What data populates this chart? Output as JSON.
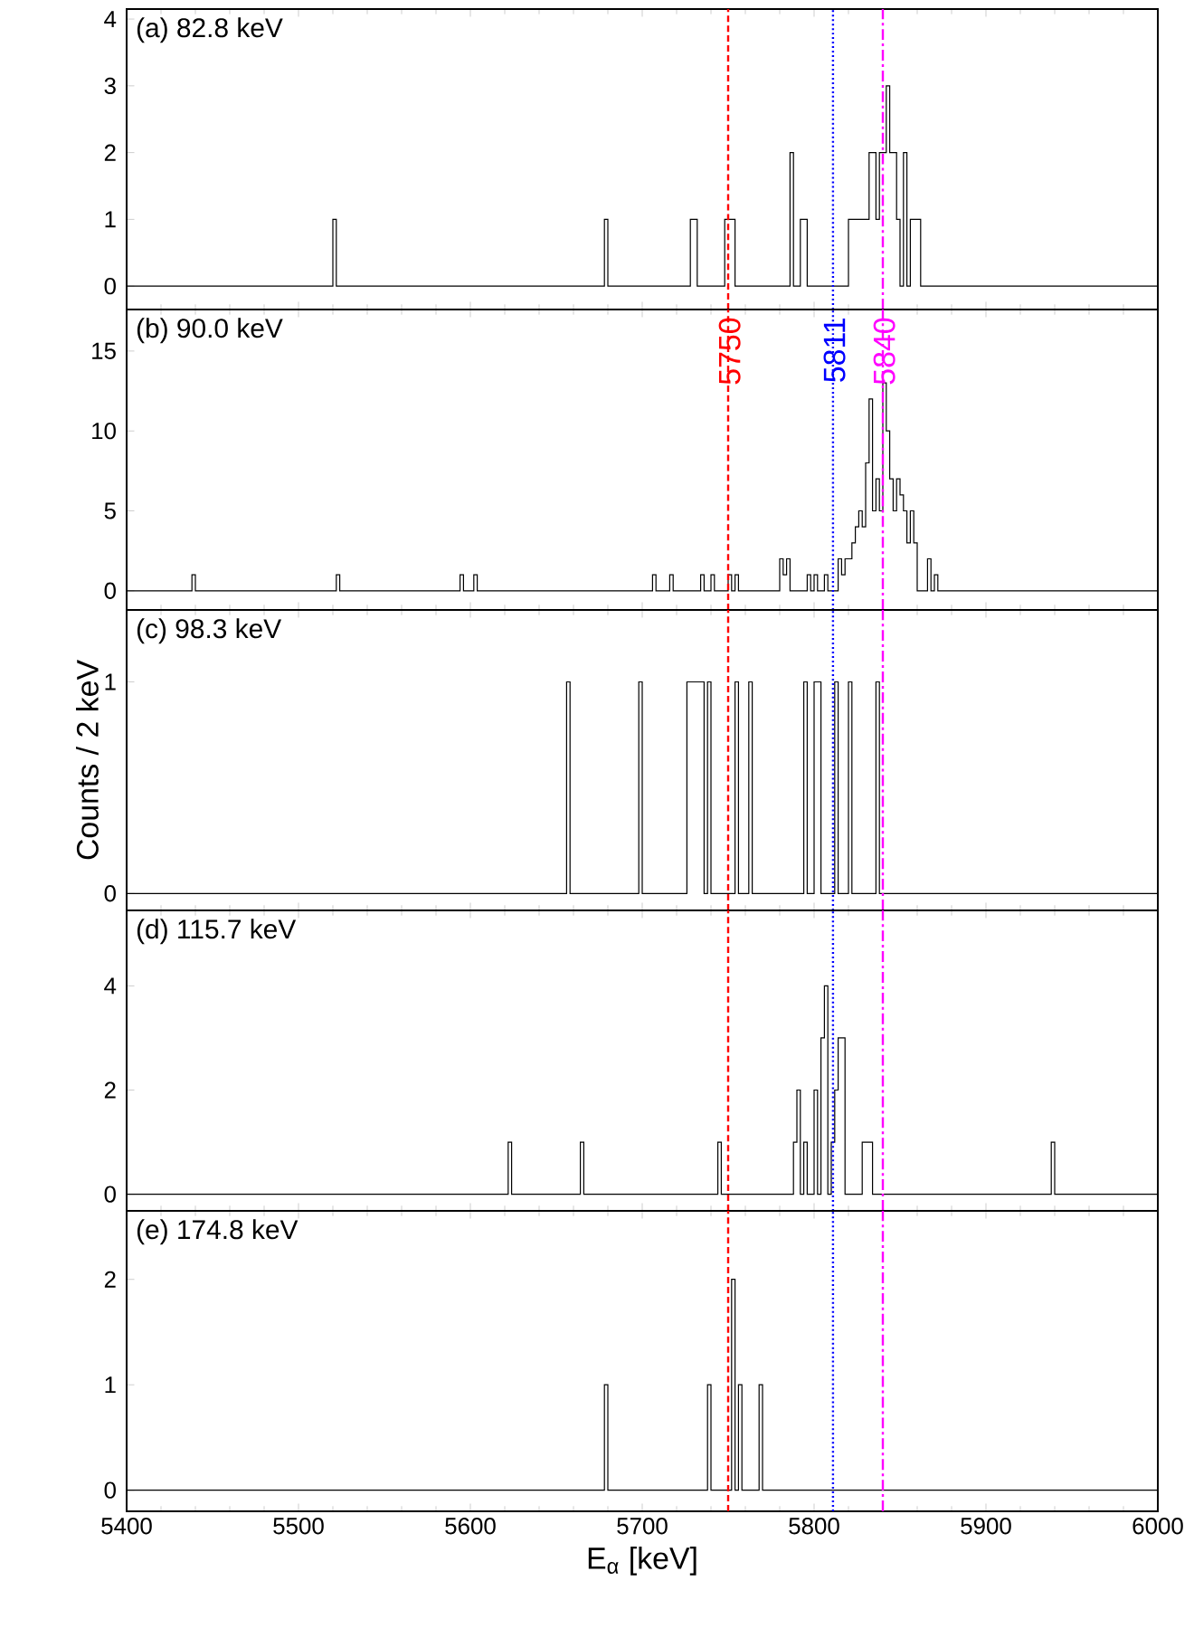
{
  "chart_data": [
    {
      "type": "histogram",
      "title": "(a) 82.8 keV",
      "color": "#000000",
      "tick_labels": "y",
      "bins": [
        5400,
        5520,
        5522,
        5678,
        5680,
        5728,
        5732,
        5748,
        5754,
        5786,
        5788,
        5792,
        5796,
        5820,
        5832,
        5836,
        5838,
        5842,
        5844,
        5848,
        5850,
        5852,
        5854,
        5856,
        5862,
        6000
      ],
      "values": [
        0,
        1,
        0,
        1,
        0,
        1,
        0,
        1,
        0,
        2,
        0,
        1,
        0,
        1,
        2,
        1,
        2,
        3,
        2,
        1,
        0,
        2,
        0,
        1,
        0
      ],
      "xlim": [
        5400,
        6000
      ],
      "xticks": [
        5400,
        5500,
        5600,
        5700,
        5800,
        5900,
        6000
      ],
      "ylim": [
        -0.35,
        4.15
      ],
      "yticks": [
        0,
        1,
        2,
        3,
        4
      ],
      "ref_lines": [
        {
          "axis": "x",
          "value": 5750,
          "color": "#ff0000",
          "line_style": "dashed"
        },
        {
          "axis": "x",
          "value": 5811,
          "color": "#0000ff",
          "line_style": "dotted"
        },
        {
          "axis": "x",
          "value": 5840,
          "color": "#ff00ff",
          "line_style": "dashdot"
        }
      ]
    },
    {
      "type": "histogram",
      "title": "(b) 90.0 keV",
      "color": "#000000",
      "tick_labels": "y",
      "bins": [
        5400,
        5438,
        5440,
        5522,
        5524,
        5594,
        5596,
        5602,
        5604,
        5706,
        5708,
        5716,
        5718,
        5734,
        5736,
        5740,
        5742,
        5750,
        5752,
        5754,
        5756,
        5780,
        5782,
        5784,
        5786,
        5796,
        5798,
        5800,
        5802,
        5806,
        5808,
        5814,
        5816,
        5818,
        5820,
        5822,
        5824,
        5826,
        5828,
        5830,
        5832,
        5834,
        5836,
        5838,
        5840,
        5842,
        5844,
        5846,
        5848,
        5850,
        5852,
        5854,
        5856,
        5858,
        5860,
        5866,
        5868,
        5870,
        5872,
        6000
      ],
      "values": [
        0,
        1,
        0,
        1,
        0,
        1,
        0,
        1,
        0,
        1,
        0,
        1,
        0,
        1,
        0,
        1,
        0,
        1,
        0,
        1,
        0,
        2,
        1,
        2,
        0,
        1,
        0,
        1,
        0,
        1,
        0,
        2,
        1,
        2,
        2,
        3,
        4,
        5,
        4,
        8,
        12,
        5,
        7,
        5,
        13,
        10,
        7,
        5,
        7,
        6,
        5,
        3,
        5,
        3,
        0,
        2,
        0,
        1,
        0
      ],
      "xlim": [
        5400,
        6000
      ],
      "xticks": [
        5400,
        5500,
        5600,
        5700,
        5800,
        5900,
        6000
      ],
      "ylim": [
        -1.2,
        17.6
      ],
      "yticks": [
        0,
        5,
        10,
        15
      ],
      "ref_lines": [
        {
          "axis": "x",
          "value": 5750,
          "label": "5750",
          "color": "#ff0000",
          "line_style": "dashed"
        },
        {
          "axis": "x",
          "value": 5811,
          "label": "5811",
          "color": "#0000ff",
          "line_style": "dotted"
        },
        {
          "axis": "x",
          "value": 5840,
          "label": "5840",
          "color": "#ff00ff",
          "line_style": "dashdot"
        }
      ]
    },
    {
      "type": "histogram",
      "title": "(c) 98.3 keV",
      "ylabel": "Counts / 2 keV",
      "color": "#000000",
      "tick_labels": "y",
      "bins": [
        5400,
        5656,
        5658,
        5698,
        5700,
        5726,
        5728,
        5730,
        5732,
        5734,
        5736,
        5738,
        5740,
        5754,
        5756,
        5762,
        5764,
        5794,
        5796,
        5800,
        5802,
        5804,
        5812,
        5814,
        5820,
        5822,
        5836,
        5838,
        6000
      ],
      "values": [
        0,
        1,
        0,
        1,
        0,
        1,
        1,
        1,
        1,
        1,
        0,
        1,
        0,
        1,
        0,
        1,
        0,
        1,
        0,
        1,
        1,
        0,
        1,
        0,
        1,
        0,
        1,
        0
      ],
      "xlim": [
        5400,
        6000
      ],
      "xticks": [
        5400,
        5500,
        5600,
        5700,
        5800,
        5900,
        6000
      ],
      "ylim": [
        -0.08,
        1.34
      ],
      "yticks": [
        0,
        1
      ],
      "ref_lines": [
        {
          "axis": "x",
          "value": 5750,
          "color": "#ff0000",
          "line_style": "dashed"
        },
        {
          "axis": "x",
          "value": 5811,
          "color": "#0000ff",
          "line_style": "dotted"
        },
        {
          "axis": "x",
          "value": 5840,
          "color": "#ff00ff",
          "line_style": "dashdot"
        }
      ]
    },
    {
      "type": "histogram",
      "title": "(d) 115.7 keV",
      "color": "#000000",
      "tick_labels": "y",
      "bins": [
        5400,
        5622,
        5624,
        5664,
        5666,
        5744,
        5746,
        5788,
        5790,
        5792,
        5794,
        5796,
        5800,
        5802,
        5804,
        5806,
        5808,
        5810,
        5812,
        5814,
        5816,
        5818,
        5828,
        5834,
        5938,
        5940,
        6000
      ],
      "values": [
        0,
        1,
        0,
        1,
        0,
        1,
        0,
        1,
        2,
        0,
        1,
        0,
        2,
        0,
        3,
        4,
        0,
        1,
        2,
        3,
        3,
        0,
        1,
        0,
        1,
        0
      ],
      "xlim": [
        5400,
        6000
      ],
      "xticks": [
        5400,
        5500,
        5600,
        5700,
        5800,
        5900,
        6000
      ],
      "ylim": [
        -0.32,
        5.45
      ],
      "yticks": [
        0,
        2,
        4
      ],
      "ref_lines": [
        {
          "axis": "x",
          "value": 5750,
          "color": "#ff0000",
          "line_style": "dashed"
        },
        {
          "axis": "x",
          "value": 5811,
          "color": "#0000ff",
          "line_style": "dotted"
        },
        {
          "axis": "x",
          "value": 5840,
          "color": "#ff00ff",
          "line_style": "dashdot"
        }
      ]
    },
    {
      "type": "histogram",
      "title": "(e) 174.8 keV",
      "xlabel": "E$_{α}$ [keV]",
      "color": "#000000",
      "bins": [
        5400,
        5678,
        5680,
        5738,
        5740,
        5752,
        5754,
        5756,
        5758,
        5768,
        5770,
        6000
      ],
      "values": [
        0,
        1,
        0,
        1,
        0,
        2,
        0,
        1,
        0,
        1,
        0
      ],
      "xlim": [
        5400,
        6000
      ],
      "xticks": [
        5400,
        5500,
        5600,
        5700,
        5800,
        5900,
        6000
      ],
      "ylim": [
        -0.2,
        2.65
      ],
      "yticks": [
        0,
        1,
        2
      ],
      "ref_lines": [
        {
          "axis": "x",
          "value": 5750,
          "color": "#ff0000",
          "line_style": "dashed"
        },
        {
          "axis": "x",
          "value": 5811,
          "color": "#0000ff",
          "line_style": "dotted"
        },
        {
          "axis": "x",
          "value": 5840,
          "color": "#ff00ff",
          "line_style": "dashdot"
        }
      ]
    }
  ]
}
